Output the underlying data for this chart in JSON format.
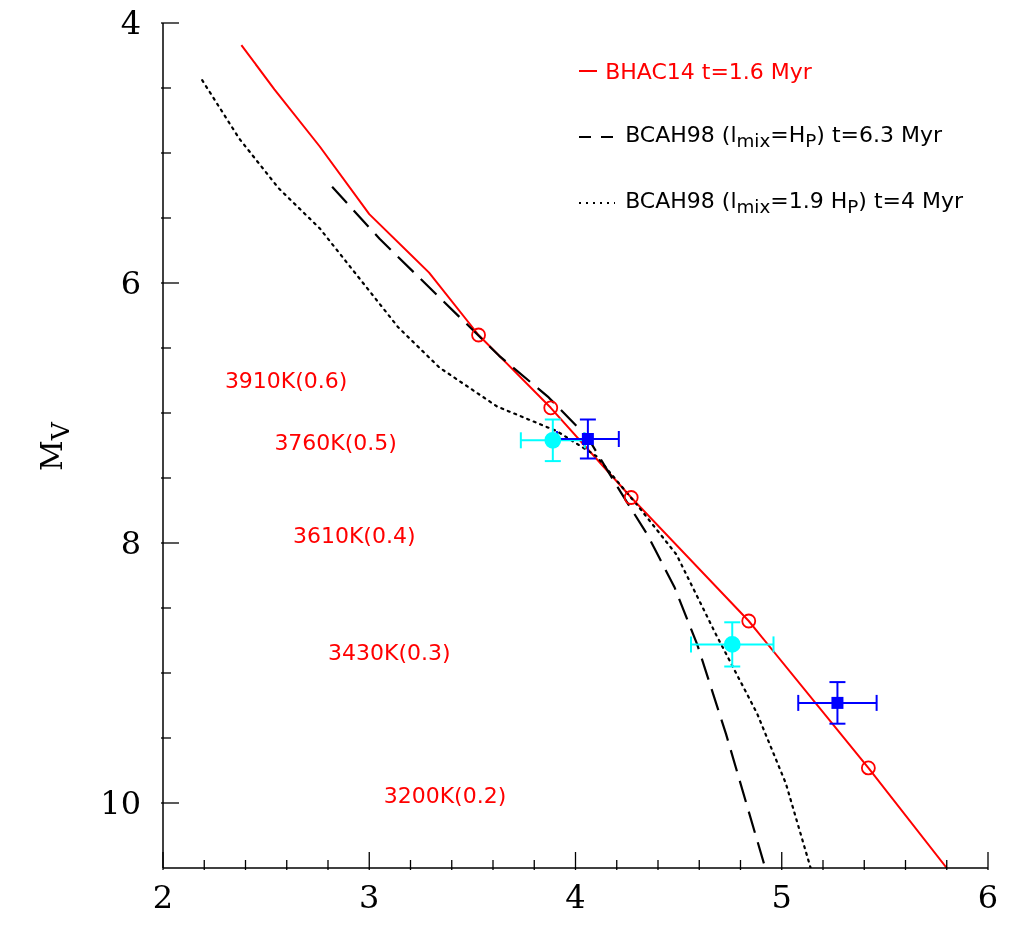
{
  "chart_data": {
    "type": "line",
    "ylabel": "M$_{V}$",
    "legend": "top right",
    "xlim": [
      2,
      6
    ],
    "ylim": [
      10.5,
      4
    ],
    "xticks": [
      2,
      {
        "value": 2.2,
        "label": null
      },
      {
        "value": 2.4,
        "label": null
      },
      {
        "value": 2.6,
        "label": null
      },
      {
        "value": 2.8,
        "label": null
      },
      3,
      {
        "value": 3.2,
        "label": null
      },
      {
        "value": 3.4,
        "label": null
      },
      {
        "value": 3.6,
        "label": null
      },
      {
        "value": 3.8,
        "label": null
      },
      4,
      {
        "value": 4.2,
        "label": null
      },
      {
        "value": 4.4,
        "label": null
      },
      {
        "value": 4.6,
        "label": null
      },
      {
        "value": 4.8,
        "label": null
      },
      5,
      {
        "value": 5.2,
        "label": null
      },
      {
        "value": 5.4,
        "label": null
      },
      {
        "value": 5.6,
        "label": null
      },
      {
        "value": 5.8,
        "label": null
      },
      6
    ],
    "yticks": [
      4,
      {
        "value": 4.5,
        "label": null
      },
      {
        "value": 5,
        "label": null
      },
      {
        "value": 5.5,
        "label": null
      },
      6,
      {
        "value": 6.5,
        "label": null
      },
      {
        "value": 7,
        "label": null
      },
      {
        "value": 7.5,
        "label": null
      },
      8,
      {
        "value": 8.5,
        "label": null
      },
      {
        "value": 9,
        "label": null
      },
      {
        "value": 9.5,
        "label": null
      },
      10
    ],
    "series": [
      {
        "name": "BHAC14 t=1.6 Myr",
        "color": "#ff0000",
        "line_style": "solid",
        "x": [
          2.38,
          2.54,
          2.76,
          3.0,
          3.29,
          3.53,
          3.88,
          4.27,
          4.84,
          5.42,
          5.8
        ],
        "values": [
          4.17,
          4.51,
          4.95,
          5.47,
          5.92,
          6.4,
          6.96,
          7.65,
          8.6,
          9.73,
          10.5
        ]
      },
      {
        "name": "BCAH98 (l$_{mix}$=H$_{P}$) t=6.3 Myr",
        "color": "#000000",
        "line_style": "dashed",
        "x": [
          2.82,
          3.05,
          3.34,
          3.63,
          3.87,
          4.06,
          4.2,
          4.35,
          4.48,
          4.59,
          4.73,
          4.92
        ],
        "values": [
          5.26,
          5.66,
          6.11,
          6.56,
          6.88,
          7.19,
          7.56,
          7.94,
          8.34,
          8.78,
          9.47,
          10.5
        ]
      },
      {
        "name": "BCAH98 (l$_{mix}$=1.9 H$_{P}$) t=4 Myr",
        "color": "#000000",
        "line_style": "dotted",
        "x": [
          2.19,
          2.37,
          2.56,
          2.76,
          2.95,
          3.14,
          3.34,
          3.62,
          3.91,
          4.1,
          4.3,
          4.49,
          4.68,
          4.88,
          5.02,
          5.14
        ],
        "values": [
          4.44,
          4.89,
          5.27,
          5.58,
          5.96,
          6.34,
          6.65,
          6.95,
          7.14,
          7.33,
          7.71,
          8.09,
          8.7,
          9.31,
          9.85,
          10.5
        ]
      },
      {
        "type": "scatter",
        "color": "#ff0000",
        "marker": "circle",
        "x": [
          3.53,
          3.88,
          4.27,
          4.84,
          5.42
        ],
        "values": [
          6.4,
          6.96,
          7.65,
          8.6,
          9.73
        ]
      },
      {
        "type": "scatter",
        "color": "#00ffff",
        "marker": "circle",
        "x": [
          3.89,
          4.76
        ],
        "values": [
          7.21,
          8.78
        ],
        "errors": [
          0.16,
          0.17
        ],
        "xerrors": [
          0.155,
          0.2
        ]
      },
      {
        "type": "scatter",
        "color": "#0000ff",
        "marker": "square",
        "x": [
          4.06,
          5.27
        ],
        "values": [
          7.2,
          9.23
        ],
        "errors": [
          0.15,
          0.16
        ],
        "xerrors": [
          0.15,
          0.19
        ]
      }
    ],
    "annotations": [
      "3910K(0.6)",
      "3760K(0.5)",
      "3610K(0.4)",
      "3430K(0.3)",
      "3200K(0.2)"
    ]
  }
}
